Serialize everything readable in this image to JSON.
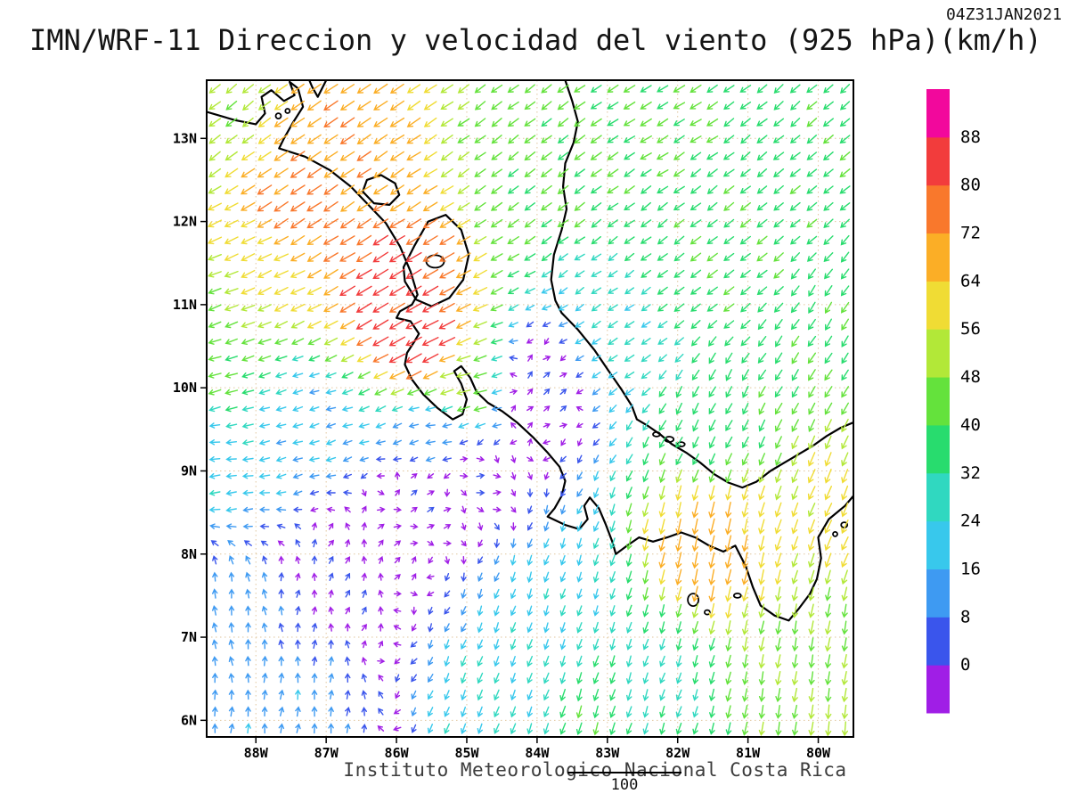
{
  "title": "IMN/WRF-11 Direccion y velocidad del viento (925 hPa)(km/h)",
  "timestamp": "04Z31JAN2021",
  "footer": "Instituto Meteorologico Nacional Costa Rica",
  "vector_key": {
    "label": "100"
  },
  "axes": {
    "x_labels": [
      "88W",
      "87W",
      "86W",
      "85W",
      "84W",
      "83W",
      "82W",
      "81W",
      "80W"
    ],
    "x_lons": [
      -88,
      -87,
      -86,
      -85,
      -84,
      -83,
      -82,
      -81,
      -80
    ],
    "y_labels": [
      "13N",
      "12N",
      "11N",
      "10N",
      "9N",
      "8N",
      "7N",
      "6N"
    ],
    "y_lats": [
      13,
      12,
      11,
      10,
      9,
      8,
      7,
      6
    ]
  },
  "colorbar": {
    "values": [
      0,
      8,
      16,
      24,
      32,
      40,
      48,
      56,
      64,
      72,
      80,
      88
    ],
    "colors_bottom_to_top": [
      "#A01EE6",
      "#3A55EC",
      "#3E9AF2",
      "#38C8EC",
      "#30D8C0",
      "#28DC6E",
      "#64E23C",
      "#B2E838",
      "#F0DC34",
      "#FBAE26",
      "#F9782C",
      "#F23C3C",
      "#F2089C"
    ]
  },
  "chart_data": {
    "type": "quiver",
    "title": "IMN/WRF-11 Direccion y velocidad del viento (925 hPa)(km/h)",
    "units": "km/h",
    "level": "925 hPa",
    "valid_time": "04Z31JAN2021",
    "extent": {
      "lon_min": -88.7,
      "lon_max": -79.5,
      "lat_min": 5.8,
      "lat_max": 13.7
    },
    "grid": {
      "cols": 39,
      "rows": 39
    },
    "speed_bins": [
      6,
      13,
      20,
      27,
      34,
      41,
      48,
      55,
      62,
      69,
      77,
      85
    ],
    "control_points": [
      [
        -88.6,
        13.4,
        -38,
        -30
      ],
      [
        -86.9,
        12.9,
        -56,
        -38
      ],
      [
        -87.4,
        12.2,
        -60,
        -40
      ],
      [
        -86.1,
        11.15,
        -68,
        -42
      ],
      [
        -85.6,
        10.5,
        -72,
        -38
      ],
      [
        -87.9,
        11.5,
        -54,
        -26
      ],
      [
        -88.5,
        11.2,
        -46,
        -18
      ],
      [
        -88.6,
        10.3,
        -40,
        -12
      ],
      [
        -88.6,
        9.2,
        -25,
        -3
      ],
      [
        -87.2,
        9.6,
        -20,
        -6
      ],
      [
        -88.4,
        7.2,
        -2,
        16
      ],
      [
        -87.6,
        6.0,
        2,
        18
      ],
      [
        -86.8,
        7.8,
        2,
        5
      ],
      [
        -85.8,
        8.6,
        4,
        2
      ],
      [
        -84.8,
        8.9,
        5,
        -1
      ],
      [
        -85.5,
        9.45,
        -16,
        -4
      ],
      [
        -85.1,
        10.05,
        -48,
        -14
      ],
      [
        -84.0,
        10.0,
        5,
        4
      ],
      [
        -84.3,
        6.3,
        -10,
        -26
      ],
      [
        -83.2,
        6.0,
        -12,
        -38
      ],
      [
        -83.8,
        7.5,
        -8,
        -24
      ],
      [
        -84.0,
        12.8,
        -34,
        -26
      ],
      [
        -82.3,
        13.4,
        -36,
        -22
      ],
      [
        -79.8,
        13.4,
        -30,
        -26
      ],
      [
        -81.5,
        11.5,
        -32,
        -24
      ],
      [
        -80.3,
        12.6,
        -30,
        -24
      ],
      [
        -79.7,
        10.6,
        -22,
        -34
      ],
      [
        -82.8,
        10.6,
        -24,
        -16
      ],
      [
        -81.6,
        9.6,
        -18,
        -34
      ],
      [
        -81.6,
        8.15,
        -14,
        -64
      ],
      [
        -80.1,
        6.6,
        -8,
        -46
      ],
      [
        -79.6,
        8.7,
        -22,
        -52
      ],
      [
        -82.5,
        6.5,
        -10,
        -30
      ],
      [
        -79.6,
        6.0,
        -6,
        -50
      ]
    ]
  }
}
